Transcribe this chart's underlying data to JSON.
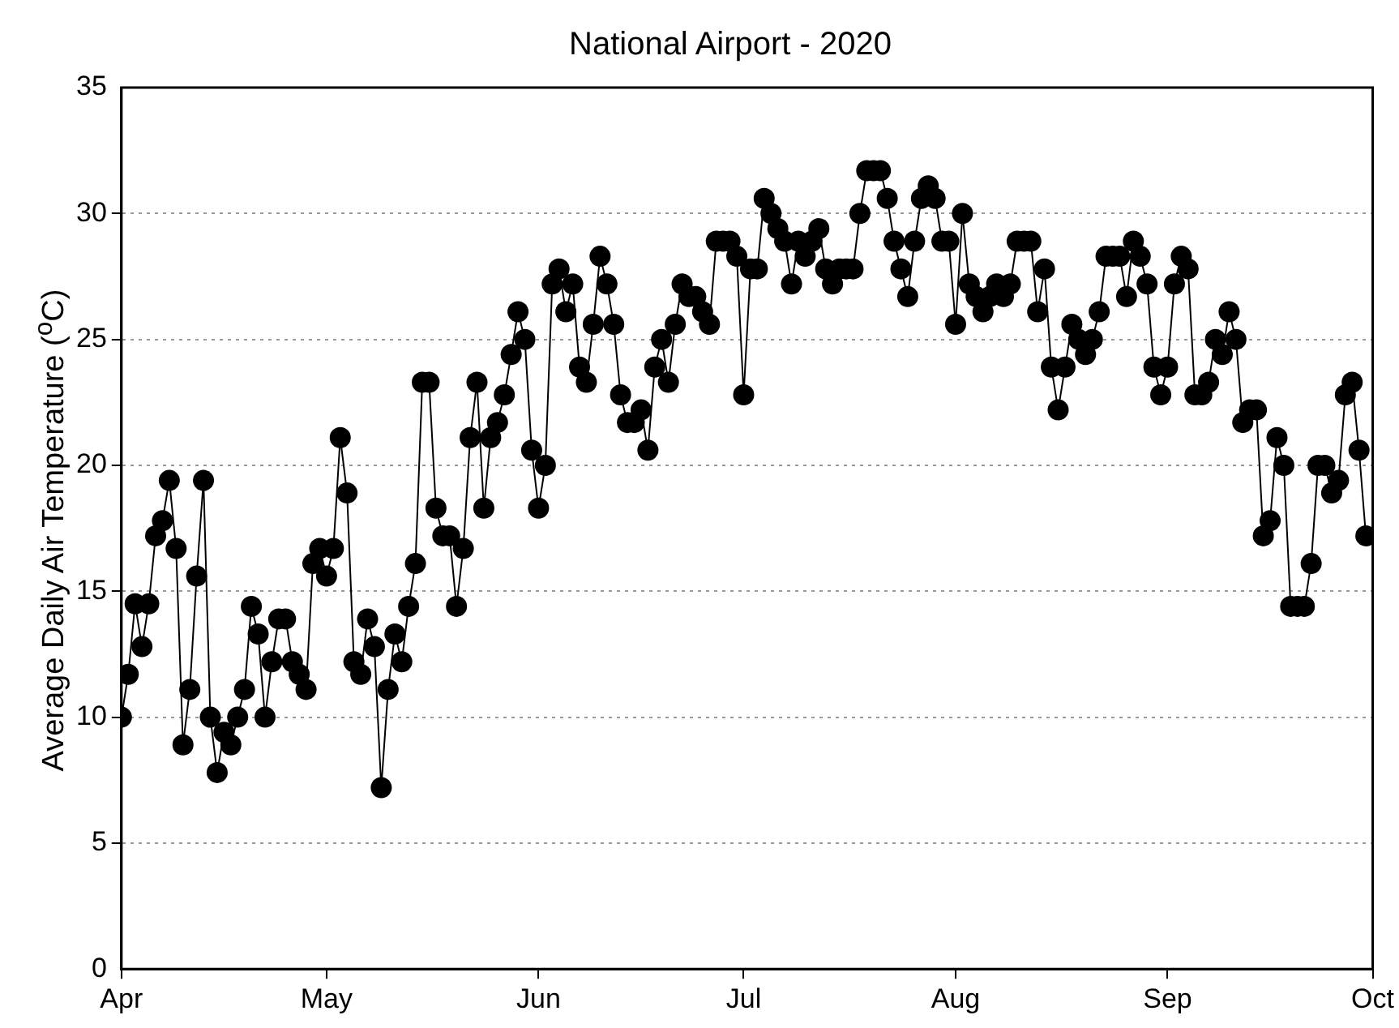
{
  "chart_data": {
    "type": "line",
    "title": "National Airport - 2020",
    "ylabel": "Average Daily Air Temperature ($^{o}$C)",
    "xlim": [
      "2020-04-01",
      "2020-10-01"
    ],
    "xticks": [
      {
        "value": "2020-04-01",
        "label": "Apr"
      },
      {
        "value": "2020-05-01",
        "label": "May"
      },
      {
        "value": "2020-06-01",
        "label": "Jun"
      },
      {
        "value": "2020-07-01",
        "label": "Jul"
      },
      {
        "value": "2020-08-01",
        "label": "Aug"
      },
      {
        "value": "2020-09-01",
        "label": "Sep"
      },
      {
        "value": "2020-10-01",
        "label": "Oct"
      }
    ],
    "ylim": [
      0,
      35
    ],
    "yticks": [
      0,
      5,
      10,
      15,
      20,
      25,
      30,
      35
    ],
    "grid": "y",
    "marker": "circle",
    "line_style": "solid",
    "series": [
      {
        "color": "#000000",
        "x": [
          "2020-04-01",
          "2020-04-02",
          "2020-04-03",
          "2020-04-04",
          "2020-04-05",
          "2020-04-06",
          "2020-04-07",
          "2020-04-08",
          "2020-04-09",
          "2020-04-10",
          "2020-04-11",
          "2020-04-12",
          "2020-04-13",
          "2020-04-14",
          "2020-04-15",
          "2020-04-16",
          "2020-04-17",
          "2020-04-18",
          "2020-04-19",
          "2020-04-20",
          "2020-04-21",
          "2020-04-22",
          "2020-04-23",
          "2020-04-24",
          "2020-04-25",
          "2020-04-26",
          "2020-04-27",
          "2020-04-28",
          "2020-04-29",
          "2020-04-30",
          "2020-05-01",
          "2020-05-02",
          "2020-05-03",
          "2020-05-04",
          "2020-05-05",
          "2020-05-06",
          "2020-05-07",
          "2020-05-08",
          "2020-05-09",
          "2020-05-10",
          "2020-05-11",
          "2020-05-12",
          "2020-05-13",
          "2020-05-14",
          "2020-05-15",
          "2020-05-16",
          "2020-05-17",
          "2020-05-18",
          "2020-05-19",
          "2020-05-20",
          "2020-05-21",
          "2020-05-22",
          "2020-05-23",
          "2020-05-24",
          "2020-05-25",
          "2020-05-26",
          "2020-05-27",
          "2020-05-28",
          "2020-05-29",
          "2020-05-30",
          "2020-05-31",
          "2020-06-01",
          "2020-06-02",
          "2020-06-03",
          "2020-06-04",
          "2020-06-05",
          "2020-06-06",
          "2020-06-07",
          "2020-06-08",
          "2020-06-09",
          "2020-06-10",
          "2020-06-11",
          "2020-06-12",
          "2020-06-13",
          "2020-06-14",
          "2020-06-15",
          "2020-06-16",
          "2020-06-17",
          "2020-06-18",
          "2020-06-19",
          "2020-06-20",
          "2020-06-21",
          "2020-06-22",
          "2020-06-23",
          "2020-06-24",
          "2020-06-25",
          "2020-06-26",
          "2020-06-27",
          "2020-06-28",
          "2020-06-29",
          "2020-06-30",
          "2020-07-01",
          "2020-07-02",
          "2020-07-03",
          "2020-07-04",
          "2020-07-05",
          "2020-07-06",
          "2020-07-07",
          "2020-07-08",
          "2020-07-09",
          "2020-07-10",
          "2020-07-11",
          "2020-07-12",
          "2020-07-13",
          "2020-07-14",
          "2020-07-15",
          "2020-07-16",
          "2020-07-17",
          "2020-07-18",
          "2020-07-19",
          "2020-07-20",
          "2020-07-21",
          "2020-07-22",
          "2020-07-23",
          "2020-07-24",
          "2020-07-25",
          "2020-07-26",
          "2020-07-27",
          "2020-07-28",
          "2020-07-29",
          "2020-07-30",
          "2020-07-31",
          "2020-08-01",
          "2020-08-02",
          "2020-08-03",
          "2020-08-04",
          "2020-08-05",
          "2020-08-06",
          "2020-08-07",
          "2020-08-08",
          "2020-08-09",
          "2020-08-10",
          "2020-08-11",
          "2020-08-12",
          "2020-08-13",
          "2020-08-14",
          "2020-08-15",
          "2020-08-16",
          "2020-08-17",
          "2020-08-18",
          "2020-08-19",
          "2020-08-20",
          "2020-08-21",
          "2020-08-22",
          "2020-08-23",
          "2020-08-24",
          "2020-08-25",
          "2020-08-26",
          "2020-08-27",
          "2020-08-28",
          "2020-08-29",
          "2020-08-30",
          "2020-08-31",
          "2020-09-01",
          "2020-09-02",
          "2020-09-03",
          "2020-09-04",
          "2020-09-05",
          "2020-09-06",
          "2020-09-07",
          "2020-09-08",
          "2020-09-09",
          "2020-09-10",
          "2020-09-11",
          "2020-09-12",
          "2020-09-13",
          "2020-09-14",
          "2020-09-15",
          "2020-09-16",
          "2020-09-17",
          "2020-09-18",
          "2020-09-19",
          "2020-09-20",
          "2020-09-21",
          "2020-09-22",
          "2020-09-23",
          "2020-09-24",
          "2020-09-25",
          "2020-09-26",
          "2020-09-27",
          "2020-09-28",
          "2020-09-29",
          "2020-09-30"
        ],
        "values": [
          10.0,
          11.7,
          14.5,
          12.8,
          14.5,
          17.2,
          17.8,
          19.4,
          16.7,
          8.9,
          11.1,
          15.6,
          19.4,
          10.0,
          7.8,
          9.4,
          8.9,
          10.0,
          11.1,
          14.4,
          13.3,
          10.0,
          12.2,
          13.9,
          13.9,
          12.2,
          11.7,
          11.1,
          16.1,
          16.7,
          15.6,
          16.7,
          21.1,
          18.9,
          12.2,
          11.7,
          13.9,
          12.8,
          7.2,
          11.1,
          13.3,
          12.2,
          14.4,
          16.1,
          23.3,
          23.3,
          18.3,
          17.2,
          17.2,
          14.4,
          16.7,
          21.1,
          23.3,
          18.3,
          21.1,
          21.7,
          22.8,
          24.4,
          26.1,
          25.0,
          20.6,
          18.3,
          20.0,
          27.2,
          27.8,
          26.1,
          27.2,
          23.9,
          23.3,
          25.6,
          28.3,
          27.2,
          25.6,
          22.8,
          21.7,
          21.7,
          22.2,
          20.6,
          23.9,
          25.0,
          23.3,
          25.6,
          27.2,
          26.7,
          26.7,
          26.1,
          25.6,
          28.9,
          28.9,
          28.9,
          28.3,
          22.8,
          27.8,
          27.8,
          30.6,
          30.0,
          29.4,
          28.9,
          27.2,
          28.9,
          28.3,
          28.9,
          29.4,
          27.8,
          27.2,
          27.8,
          27.8,
          27.8,
          30.0,
          31.7,
          31.7,
          31.7,
          30.6,
          28.9,
          27.8,
          26.7,
          28.9,
          30.6,
          31.1,
          30.6,
          28.9,
          28.9,
          25.6,
          30.0,
          27.2,
          26.7,
          26.1,
          26.7,
          27.2,
          26.7,
          27.2,
          28.9,
          28.9,
          28.9,
          26.1,
          27.8,
          23.9,
          22.2,
          23.9,
          25.6,
          25.0,
          24.4,
          25.0,
          26.1,
          28.3,
          28.3,
          28.3,
          26.7,
          28.9,
          28.3,
          27.2,
          23.9,
          22.8,
          23.9,
          27.2,
          28.3,
          27.8,
          22.8,
          22.8,
          23.3,
          25.0,
          24.4,
          26.1,
          25.0,
          21.7,
          22.2,
          22.2,
          17.2,
          17.8,
          21.1,
          20.0,
          14.4,
          14.4,
          14.4,
          16.1,
          20.0,
          20.0,
          18.9,
          19.4,
          22.8,
          23.3,
          20.6,
          17.2
        ]
      }
    ]
  }
}
